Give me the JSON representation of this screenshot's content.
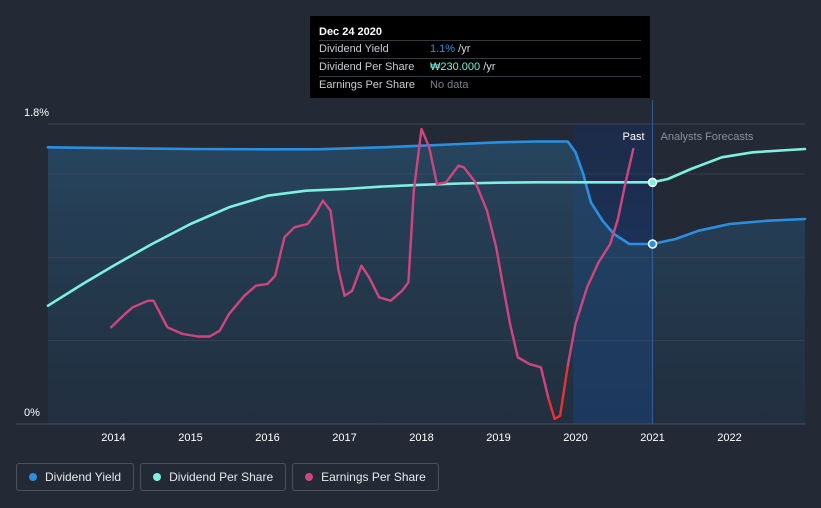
{
  "tooltip": {
    "date": "Dec 24 2020",
    "rows": {
      "yield": {
        "label": "Dividend Yield",
        "value": "1.1%",
        "unit": " /yr"
      },
      "dps": {
        "label": "Dividend Per Share",
        "value": "₩230.000",
        "unit": " /yr"
      },
      "eps": {
        "label": "Earnings Per Share",
        "value": "No data"
      }
    }
  },
  "legend": {
    "yield": "Dividend Yield",
    "dps": "Dividend Per Share",
    "eps": "Earnings Per Share"
  },
  "colors": {
    "background": "#232a36",
    "yield": "#2b8fe0",
    "dps": "#7ef0df",
    "eps": "#d0457f",
    "eps_negative": "#e8322f",
    "past_highlight": "#1a3a66"
  },
  "chart_data": {
    "type": "line",
    "xlim": [
      2013.15,
      2022.98
    ],
    "ylim": [
      0,
      1.8
    ],
    "x_ticks": [
      "2014",
      "2015",
      "2016",
      "2017",
      "2018",
      "2019",
      "2020",
      "2021",
      "2022"
    ],
    "y_tick_labels": {
      "top": "1.8%",
      "bottom": "0%"
    },
    "gridlines": [
      0.5,
      1.0,
      1.5,
      1.8
    ],
    "past_label": "Past",
    "forecast_label": "Analysts Forecasts",
    "past_region": [
      2019.97,
      2021.0
    ],
    "forecast_start": 2021.0,
    "series": [
      {
        "name": "Dividend Yield",
        "key": "yield",
        "points": [
          [
            2013.15,
            1.66
          ],
          [
            2014.0,
            1.655
          ],
          [
            2015.0,
            1.65
          ],
          [
            2016.0,
            1.648
          ],
          [
            2016.7,
            1.649
          ],
          [
            2017.5,
            1.66
          ],
          [
            2018.0,
            1.67
          ],
          [
            2018.5,
            1.68
          ],
          [
            2019.0,
            1.69
          ],
          [
            2019.5,
            1.695
          ],
          [
            2019.9,
            1.695
          ],
          [
            2020.0,
            1.63
          ],
          [
            2020.1,
            1.5
          ],
          [
            2020.2,
            1.33
          ],
          [
            2020.35,
            1.22
          ],
          [
            2020.5,
            1.14
          ],
          [
            2020.7,
            1.08
          ],
          [
            2021.0,
            1.08
          ],
          [
            2021.3,
            1.11
          ],
          [
            2021.6,
            1.16
          ],
          [
            2022.0,
            1.2
          ],
          [
            2022.5,
            1.22
          ],
          [
            2022.98,
            1.23
          ]
        ]
      },
      {
        "name": "Dividend Per Share",
        "key": "dps",
        "points": [
          [
            2013.15,
            0.71
          ],
          [
            2013.6,
            0.84
          ],
          [
            2014.0,
            0.95
          ],
          [
            2014.5,
            1.08
          ],
          [
            2015.0,
            1.2
          ],
          [
            2015.5,
            1.3
          ],
          [
            2016.0,
            1.37
          ],
          [
            2016.5,
            1.4
          ],
          [
            2017.0,
            1.41
          ],
          [
            2017.5,
            1.425
          ],
          [
            2018.0,
            1.435
          ],
          [
            2018.5,
            1.443
          ],
          [
            2019.0,
            1.448
          ],
          [
            2019.5,
            1.45
          ],
          [
            2020.0,
            1.45
          ],
          [
            2020.5,
            1.45
          ],
          [
            2021.0,
            1.45
          ],
          [
            2021.2,
            1.47
          ],
          [
            2021.5,
            1.53
          ],
          [
            2021.9,
            1.6
          ],
          [
            2022.3,
            1.63
          ],
          [
            2022.98,
            1.65
          ]
        ]
      },
      {
        "name": "Earnings Per Share",
        "key": "eps",
        "points": [
          [
            2013.97,
            0.58
          ],
          [
            2014.15,
            0.66
          ],
          [
            2014.25,
            0.7
          ],
          [
            2014.45,
            0.74
          ],
          [
            2014.52,
            0.74
          ],
          [
            2014.7,
            0.58
          ],
          [
            2014.9,
            0.54
          ],
          [
            2015.1,
            0.525
          ],
          [
            2015.25,
            0.525
          ],
          [
            2015.38,
            0.56
          ],
          [
            2015.5,
            0.66
          ],
          [
            2015.7,
            0.77
          ],
          [
            2015.85,
            0.83
          ],
          [
            2016.0,
            0.84
          ],
          [
            2016.1,
            0.89
          ],
          [
            2016.22,
            1.12
          ],
          [
            2016.35,
            1.18
          ],
          [
            2016.52,
            1.2
          ],
          [
            2016.62,
            1.26
          ],
          [
            2016.72,
            1.34
          ],
          [
            2016.82,
            1.28
          ],
          [
            2016.92,
            0.93
          ],
          [
            2017.0,
            0.77
          ],
          [
            2017.1,
            0.8
          ],
          [
            2017.22,
            0.95
          ],
          [
            2017.32,
            0.88
          ],
          [
            2017.45,
            0.76
          ],
          [
            2017.6,
            0.74
          ],
          [
            2017.75,
            0.8
          ],
          [
            2017.83,
            0.85
          ],
          [
            2017.9,
            1.4
          ],
          [
            2018.0,
            1.77
          ],
          [
            2018.1,
            1.66
          ],
          [
            2018.2,
            1.44
          ],
          [
            2018.32,
            1.45
          ],
          [
            2018.48,
            1.55
          ],
          [
            2018.55,
            1.54
          ],
          [
            2018.7,
            1.45
          ],
          [
            2018.85,
            1.28
          ],
          [
            2018.97,
            1.06
          ],
          [
            2019.05,
            0.85
          ],
          [
            2019.15,
            0.6
          ],
          [
            2019.25,
            0.4
          ],
          [
            2019.4,
            0.36
          ],
          [
            2019.55,
            0.34
          ],
          [
            2019.65,
            0.15
          ],
          [
            2019.73,
            0.03
          ],
          [
            2019.8,
            0.05
          ],
          [
            2019.9,
            0.35
          ],
          [
            2020.0,
            0.6
          ],
          [
            2020.15,
            0.82
          ],
          [
            2020.3,
            0.97
          ],
          [
            2020.45,
            1.08
          ],
          [
            2020.55,
            1.23
          ],
          [
            2020.65,
            1.45
          ],
          [
            2020.75,
            1.65
          ]
        ]
      }
    ],
    "markers": [
      {
        "series": "dps",
        "x": 2021.0,
        "y": 1.45
      },
      {
        "series": "yield",
        "x": 2021.0,
        "y": 1.08
      }
    ]
  }
}
